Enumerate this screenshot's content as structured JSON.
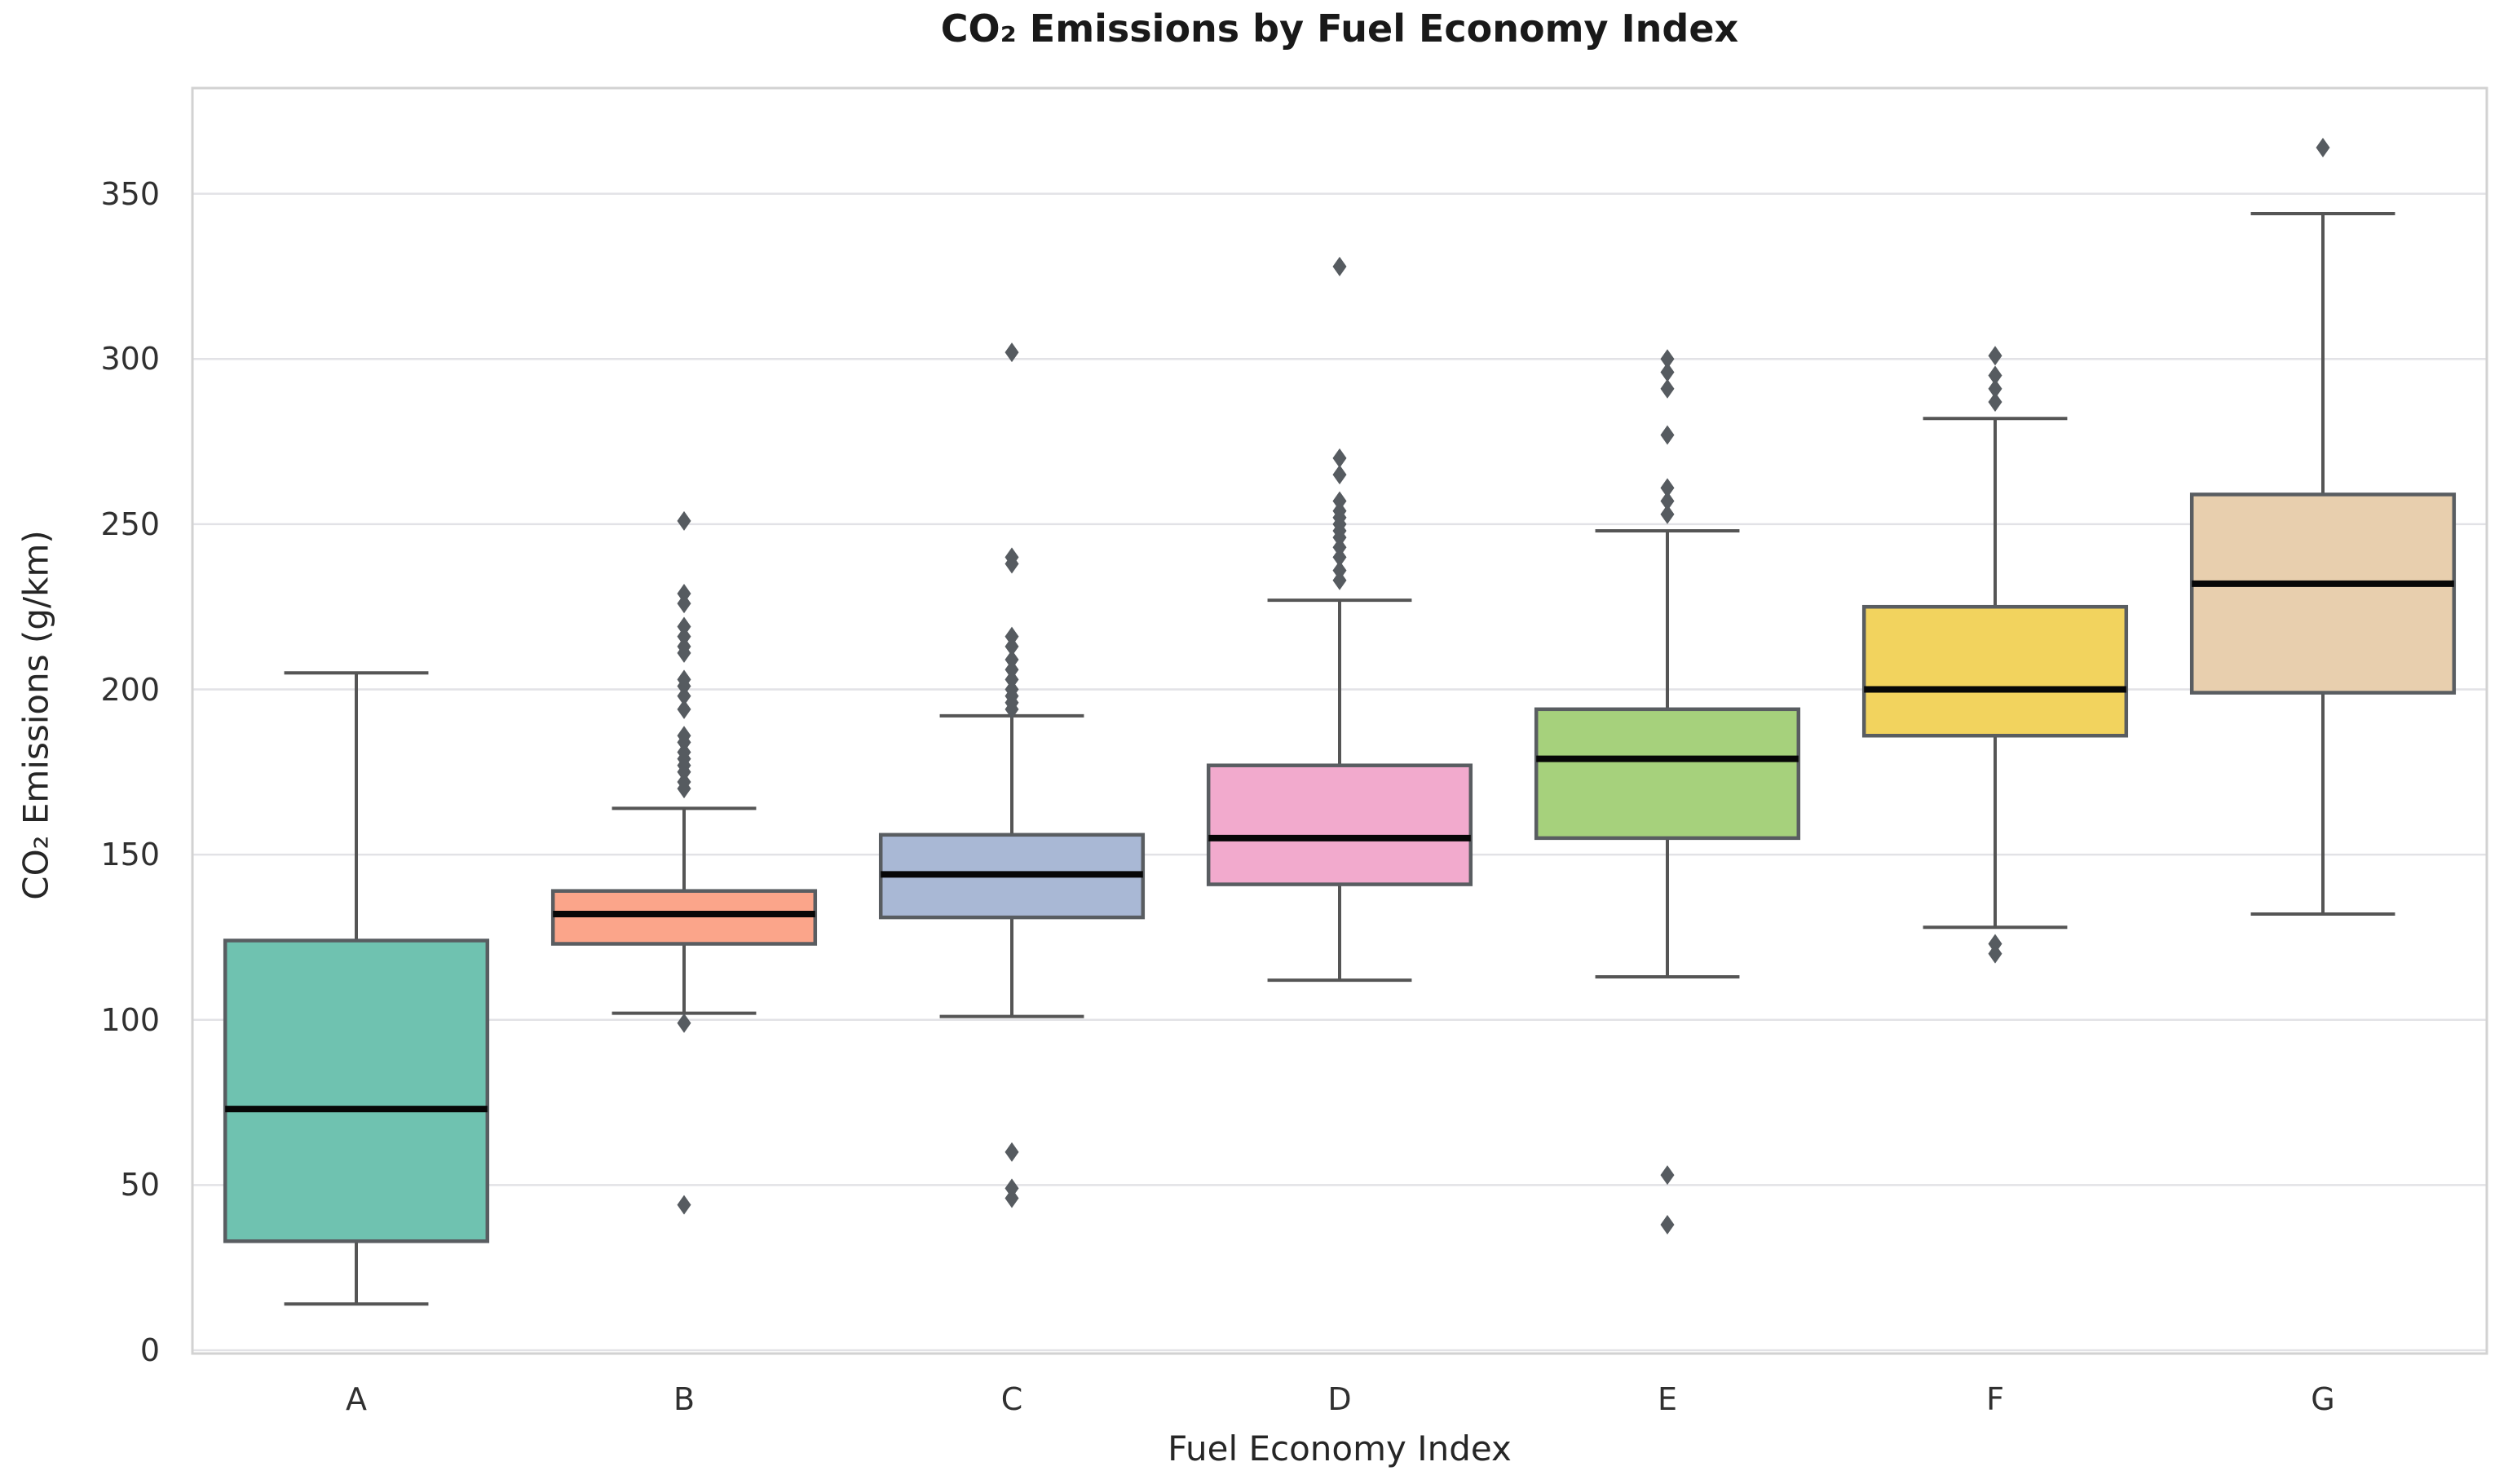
{
  "title": "CO₂ Emissions by Fuel Economy Index",
  "x_label": "Fuel Economy Index",
  "y_label": "CO₂ Emissions (g/km)",
  "chart_data": {
    "type": "box",
    "title": "CO₂ Emissions by Fuel Economy Index",
    "xlabel": "Fuel Economy Index",
    "ylabel": "CO₂ Emissions (g/km)",
    "categories": [
      "A",
      "B",
      "C",
      "D",
      "E",
      "F",
      "G"
    ],
    "y_ticks": [
      0,
      50,
      100,
      150,
      200,
      250,
      300,
      350
    ],
    "y_range": [
      -1,
      382
    ],
    "grid": "horizontal-only",
    "legend": "none",
    "series": [
      {
        "category": "A",
        "fill_color": "#6fc2b0",
        "whisker_low": 14,
        "q1": 33,
        "median": 73,
        "q3": 124,
        "whisker_high": 205,
        "outliers": []
      },
      {
        "category": "B",
        "fill_color": "#fba58a",
        "whisker_low": 102,
        "q1": 123,
        "median": 132,
        "q3": 139,
        "whisker_high": 164,
        "outliers": [
          44,
          99,
          170,
          172,
          175,
          177,
          179,
          181,
          184,
          186,
          194,
          198,
          201,
          203,
          211,
          213,
          216,
          219,
          226,
          229,
          251
        ]
      },
      {
        "category": "C",
        "fill_color": "#a9b8d5",
        "whisker_low": 101,
        "q1": 131,
        "median": 144,
        "q3": 156,
        "whisker_high": 192,
        "outliers": [
          46,
          49,
          60,
          194,
          196,
          198,
          200,
          203,
          206,
          209,
          213,
          216,
          238,
          240,
          302
        ]
      },
      {
        "category": "D",
        "fill_color": "#f2aacd",
        "whisker_low": 112,
        "q1": 141,
        "median": 155,
        "q3": 177,
        "whisker_high": 227,
        "outliers": [
          233,
          236,
          240,
          243,
          246,
          248,
          250,
          252,
          254,
          257,
          265,
          270,
          328
        ]
      },
      {
        "category": "E",
        "fill_color": "#a6d17c",
        "whisker_low": 113,
        "q1": 155,
        "median": 179,
        "q3": 194,
        "whisker_high": 248,
        "outliers": [
          38,
          53,
          253,
          257,
          261,
          277,
          291,
          296,
          300
        ]
      },
      {
        "category": "F",
        "fill_color": "#f2d35e",
        "whisker_low": 128,
        "q1": 186,
        "median": 200,
        "q3": 225,
        "whisker_high": 282,
        "outliers": [
          120,
          123,
          287,
          291,
          295,
          301
        ]
      },
      {
        "category": "G",
        "fill_color": "#e8cfae",
        "whisker_low": 132,
        "q1": 199,
        "median": 232,
        "q3": 259,
        "whisker_high": 344,
        "outliers": [
          364
        ]
      }
    ],
    "style": {
      "background": "#ffffff",
      "grid_color": "#e2e2e6",
      "spine_color": "#d2d2d2",
      "whisker_color": "#555555",
      "box_edge_color": "#595d61",
      "median_color": "#070707",
      "flier_color": "#565b60",
      "flier_marker": "diamond"
    }
  }
}
